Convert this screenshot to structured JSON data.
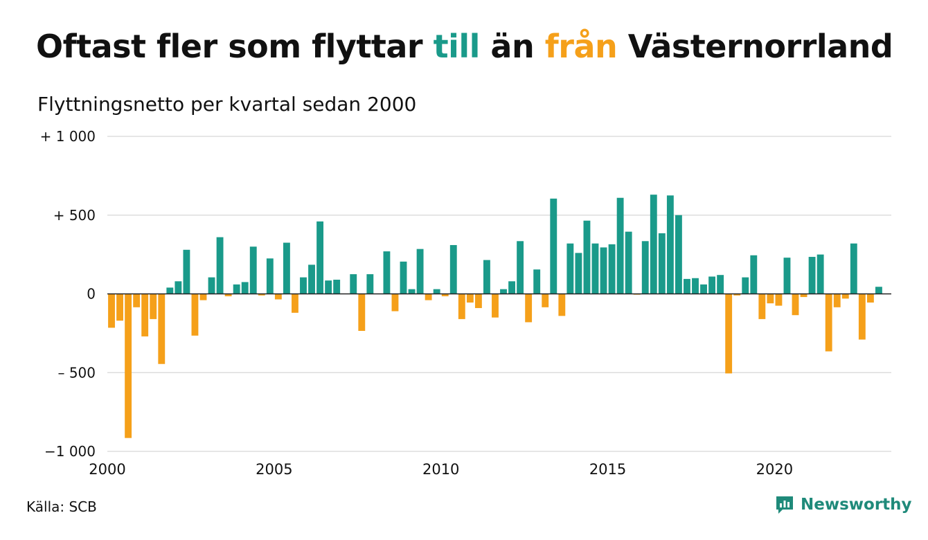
{
  "title": {
    "part1": "Oftast fler som flyttar ",
    "till": "till",
    "part2": " än ",
    "fran": "från",
    "part3": " Västernorrland"
  },
  "subtitle": "Flyttningsnetto per kvartal sedan 2000",
  "source": "Källa: SCB",
  "brand": {
    "name": "Newsworthy",
    "icon": "newsworthy-logo-icon"
  },
  "colors": {
    "positive": "#1a9a8a",
    "negative": "#f5a01a",
    "grid": "#dddddd",
    "zero": "#222222",
    "brand": "#1f8a7a"
  },
  "chart_data": {
    "type": "bar",
    "title": "Oftast fler som flyttar till än från Västernorrland",
    "subtitle": "Flyttningsnetto per kvartal sedan 2000",
    "xlabel": "",
    "ylabel": "",
    "ylim": [
      -1000,
      1000
    ],
    "yticks": [
      {
        "value": 1000,
        "label": "+ 1 000"
      },
      {
        "value": 500,
        "label": "+   500"
      },
      {
        "value": 0,
        "label": "0"
      },
      {
        "value": -500,
        "label": "–  500"
      },
      {
        "value": -1000,
        "label": "−1 000"
      }
    ],
    "xticks": [
      {
        "value": 2000,
        "label": "2000"
      },
      {
        "value": 2005,
        "label": "2005"
      },
      {
        "value": 2010,
        "label": "2010"
      },
      {
        "value": 2015,
        "label": "2015"
      },
      {
        "value": 2020,
        "label": "2020"
      }
    ],
    "xlim": [
      2000,
      2023.5
    ],
    "start_year": 2000,
    "grid": true,
    "values": [
      -215,
      -170,
      -915,
      -85,
      -270,
      -160,
      -445,
      40,
      80,
      280,
      -265,
      -40,
      105,
      360,
      -15,
      60,
      75,
      300,
      -10,
      225,
      -35,
      325,
      -120,
      105,
      185,
      460,
      85,
      90,
      0,
      125,
      -235,
      125,
      0,
      270,
      -110,
      205,
      30,
      285,
      -40,
      30,
      -15,
      310,
      -160,
      -55,
      -90,
      215,
      -150,
      30,
      80,
      335,
      -180,
      155,
      -85,
      605,
      -140,
      320,
      260,
      465,
      320,
      295,
      315,
      610,
      395,
      -5,
      335,
      630,
      385,
      625,
      500,
      95,
      100,
      60,
      110,
      120,
      -505,
      -10,
      105,
      245,
      -160,
      -60,
      -75,
      230,
      -135,
      -20,
      235,
      250,
      -365,
      -85,
      -30,
      320,
      -290,
      -55,
      45
    ]
  }
}
